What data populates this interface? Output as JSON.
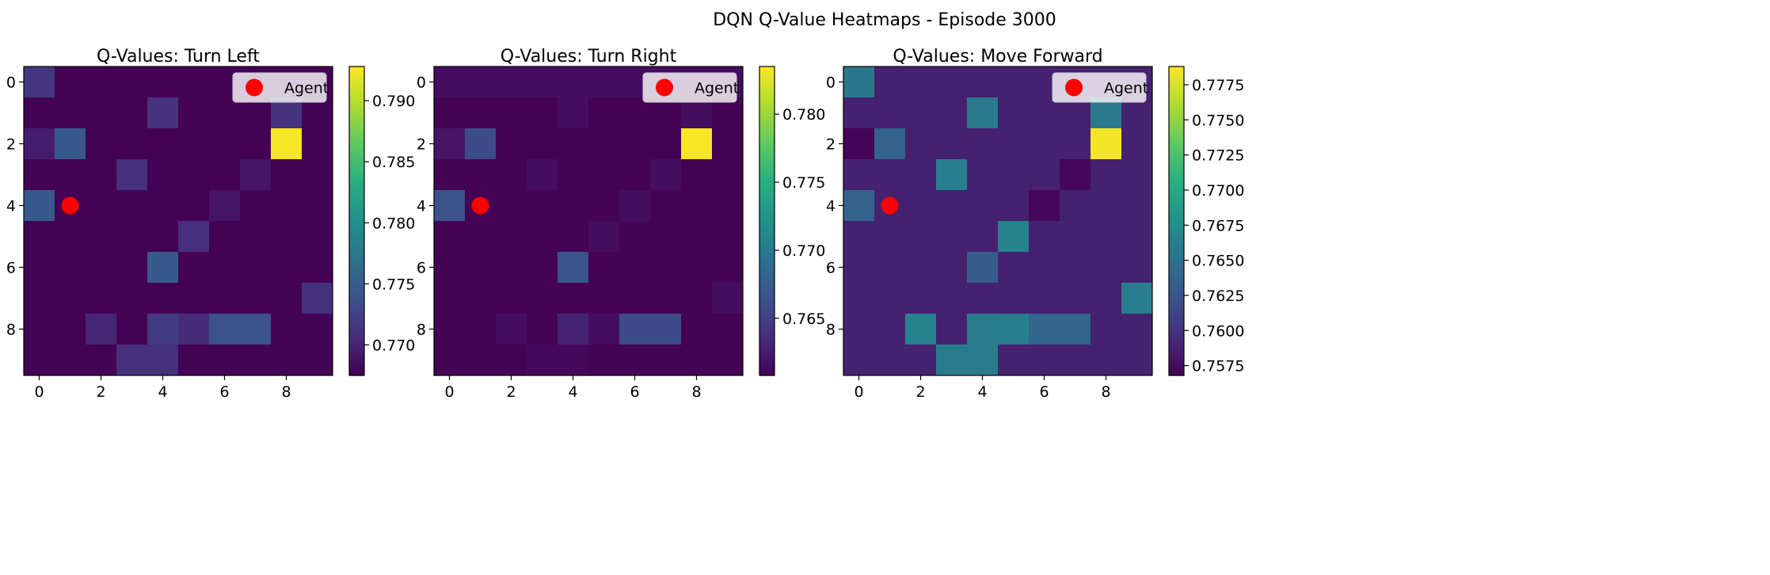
{
  "figure": {
    "title": "DQN Q-Value Heatmaps - Episode 3000",
    "colormap": "viridis",
    "marker_color": "#ff0000"
  },
  "chart_data": [
    {
      "type": "heatmap",
      "title": "Q-Values: Turn Left",
      "xticks": [
        0,
        2,
        4,
        6,
        8
      ],
      "yticks": [
        0,
        2,
        4,
        6,
        8
      ],
      "colorbar": {
        "range": [
          0.7675,
          0.7928
        ],
        "ticks": [
          "0.770",
          "0.775",
          "0.780",
          "0.785",
          "0.790"
        ],
        "tick_values": [
          0.77,
          0.775,
          0.78,
          0.785,
          0.79
        ]
      },
      "agent": {
        "label": "Agent",
        "x": 1,
        "y": 4
      },
      "legend_position": "upper right",
      "values": [
        [
          0.7715,
          0.7676,
          0.7676,
          0.7676,
          0.7676,
          0.7676,
          0.7676,
          0.7676,
          0.7676,
          0.7676
        ],
        [
          0.7676,
          0.7676,
          0.7676,
          0.7676,
          0.7712,
          0.7676,
          0.7676,
          0.7676,
          0.7712,
          0.7676
        ],
        [
          0.7695,
          0.7745,
          0.7676,
          0.7676,
          0.7676,
          0.7676,
          0.7676,
          0.7676,
          0.7925,
          0.7676
        ],
        [
          0.7676,
          0.7676,
          0.7676,
          0.771,
          0.7676,
          0.7676,
          0.7676,
          0.769,
          0.7676,
          0.7676
        ],
        [
          0.7745,
          0.7676,
          0.7676,
          0.7676,
          0.7676,
          0.7676,
          0.769,
          0.7676,
          0.7676,
          0.7676
        ],
        [
          0.7676,
          0.7676,
          0.7676,
          0.7676,
          0.7676,
          0.7708,
          0.7676,
          0.7676,
          0.7676,
          0.7676
        ],
        [
          0.7676,
          0.7676,
          0.7676,
          0.7676,
          0.7745,
          0.7676,
          0.7676,
          0.7676,
          0.7676,
          0.7676
        ],
        [
          0.7676,
          0.7676,
          0.7676,
          0.7676,
          0.7676,
          0.7676,
          0.7676,
          0.7676,
          0.7676,
          0.7712
        ],
        [
          0.7676,
          0.7676,
          0.7702,
          0.7676,
          0.7718,
          0.7705,
          0.7738,
          0.7738,
          0.7676,
          0.7676
        ],
        [
          0.7676,
          0.7676,
          0.7676,
          0.7708,
          0.7708,
          0.7676,
          0.7676,
          0.7676,
          0.7676,
          0.7676
        ]
      ]
    },
    {
      "type": "heatmap",
      "title": "Q-Values: Turn Right",
      "xticks": [
        0,
        2,
        4,
        6,
        8
      ],
      "yticks": [
        0,
        2,
        4,
        6,
        8
      ],
      "colorbar": {
        "range": [
          0.7608,
          0.7835
        ],
        "ticks": [
          "0.765",
          "0.770",
          "0.775",
          "0.780"
        ],
        "tick_values": [
          0.765,
          0.77,
          0.775,
          0.78
        ]
      },
      "agent": {
        "label": "Agent",
        "x": 1,
        "y": 4
      },
      "legend_position": "upper right",
      "values": [
        [
          0.7616,
          0.7616,
          0.7616,
          0.7616,
          0.7616,
          0.7616,
          0.7616,
          0.7616,
          0.7616,
          0.7616
        ],
        [
          0.7609,
          0.7609,
          0.7609,
          0.7609,
          0.7616,
          0.7609,
          0.7609,
          0.7609,
          0.7616,
          0.7609
        ],
        [
          0.762,
          0.766,
          0.7609,
          0.7609,
          0.7609,
          0.7609,
          0.7609,
          0.7609,
          0.7833,
          0.7609
        ],
        [
          0.7609,
          0.7609,
          0.7609,
          0.7616,
          0.7609,
          0.7609,
          0.7609,
          0.7616,
          0.7609,
          0.7609
        ],
        [
          0.7666,
          0.7609,
          0.7609,
          0.7609,
          0.7609,
          0.7609,
          0.7616,
          0.7609,
          0.7609,
          0.7609
        ],
        [
          0.7609,
          0.7609,
          0.7609,
          0.7609,
          0.7609,
          0.7616,
          0.7609,
          0.7609,
          0.7609,
          0.7609
        ],
        [
          0.7609,
          0.7609,
          0.7609,
          0.7609,
          0.7666,
          0.7609,
          0.7609,
          0.7609,
          0.7609,
          0.7609
        ],
        [
          0.7609,
          0.7609,
          0.7609,
          0.7609,
          0.7609,
          0.7609,
          0.7609,
          0.7609,
          0.7609,
          0.7616
        ],
        [
          0.7609,
          0.7609,
          0.7616,
          0.7609,
          0.763,
          0.7616,
          0.766,
          0.766,
          0.7609,
          0.7609
        ],
        [
          0.7609,
          0.7609,
          0.7609,
          0.7613,
          0.7613,
          0.7609,
          0.7609,
          0.7609,
          0.7609,
          0.7609
        ]
      ]
    },
    {
      "type": "heatmap",
      "title": "Q-Values: Move Forward",
      "xticks": [
        0,
        2,
        4,
        6,
        8
      ],
      "yticks": [
        0,
        2,
        4,
        6,
        8
      ],
      "colorbar": {
        "range": [
          0.7568,
          0.7788
        ],
        "ticks": [
          "0.7575",
          "0.7600",
          "0.7625",
          "0.7650",
          "0.7675",
          "0.7700",
          "0.7725",
          "0.7750",
          "0.7775"
        ],
        "tick_values": [
          0.7575,
          0.76,
          0.7625,
          0.765,
          0.7675,
          0.77,
          0.7725,
          0.775,
          0.7775
        ]
      },
      "agent": {
        "label": "Agent",
        "x": 1,
        "y": 4
      },
      "legend_position": "upper right",
      "values": [
        [
          0.7655,
          0.7588,
          0.7588,
          0.7588,
          0.7588,
          0.7588,
          0.7588,
          0.7588,
          0.7588,
          0.7588
        ],
        [
          0.7588,
          0.7588,
          0.7588,
          0.7588,
          0.7658,
          0.7588,
          0.7588,
          0.7588,
          0.7658,
          0.7588
        ],
        [
          0.757,
          0.7638,
          0.7588,
          0.7588,
          0.7588,
          0.7588,
          0.7588,
          0.7588,
          0.7785,
          0.7588
        ],
        [
          0.7588,
          0.7588,
          0.7588,
          0.7662,
          0.7588,
          0.7588,
          0.7588,
          0.7572,
          0.7588,
          0.7588
        ],
        [
          0.7638,
          0.7588,
          0.7588,
          0.7588,
          0.7588,
          0.7588,
          0.7572,
          0.7588,
          0.7588,
          0.7588
        ],
        [
          0.7588,
          0.7588,
          0.7588,
          0.7588,
          0.7588,
          0.7665,
          0.7588,
          0.7588,
          0.7588,
          0.7588
        ],
        [
          0.7588,
          0.7588,
          0.7588,
          0.7588,
          0.7632,
          0.7588,
          0.7588,
          0.7588,
          0.7588,
          0.7588
        ],
        [
          0.7588,
          0.7588,
          0.7588,
          0.7588,
          0.7588,
          0.7588,
          0.7588,
          0.7588,
          0.7588,
          0.7662
        ],
        [
          0.7588,
          0.7588,
          0.7665,
          0.7588,
          0.766,
          0.7662,
          0.764,
          0.764,
          0.7588,
          0.7588
        ],
        [
          0.7588,
          0.7588,
          0.7588,
          0.766,
          0.766,
          0.7588,
          0.7588,
          0.7588,
          0.7588,
          0.7588
        ]
      ]
    }
  ]
}
